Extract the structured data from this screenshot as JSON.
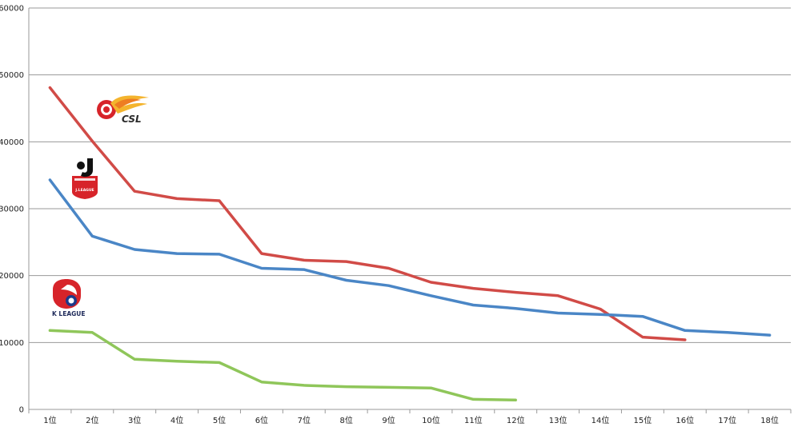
{
  "chart_data": {
    "type": "line",
    "title": "",
    "xlabel": "",
    "ylabel": "",
    "categories": [
      "1位",
      "2位",
      "3位",
      "4位",
      "5位",
      "6位",
      "7位",
      "8位",
      "9位",
      "10位",
      "11位",
      "12位",
      "13位",
      "14位",
      "15位",
      "16位",
      "17位",
      "18位"
    ],
    "yticks": [
      "0",
      "10000",
      "20000",
      "30000",
      "40000",
      "50000",
      "60000"
    ],
    "ylim": [
      0,
      60000
    ],
    "grid": true,
    "series": [
      {
        "key": "csl",
        "color": "#d14b47",
        "values": [
          48100,
          40100,
          32600,
          31500,
          31200,
          23300,
          22300,
          22100,
          21100,
          19000,
          18100,
          17500,
          17000,
          15000,
          10800,
          10400,
          null,
          null
        ]
      },
      {
        "key": "jleague",
        "color": "#4a86c6",
        "values": [
          34300,
          25900,
          23900,
          23300,
          23200,
          21100,
          20900,
          19300,
          18500,
          17000,
          15600,
          15100,
          14400,
          14200,
          13900,
          11800,
          11500,
          11100
        ]
      },
      {
        "key": "kleague",
        "color": "#8fc65a",
        "values": [
          11800,
          11500,
          7500,
          7200,
          7000,
          4100,
          3600,
          3400,
          3300,
          3200,
          1500,
          1400,
          null,
          null,
          null,
          null,
          null,
          null
        ]
      }
    ],
    "logos": {
      "csl": "CSL",
      "jleague": "J.LEAGUE",
      "kleague": "K LEAGUE"
    }
  }
}
